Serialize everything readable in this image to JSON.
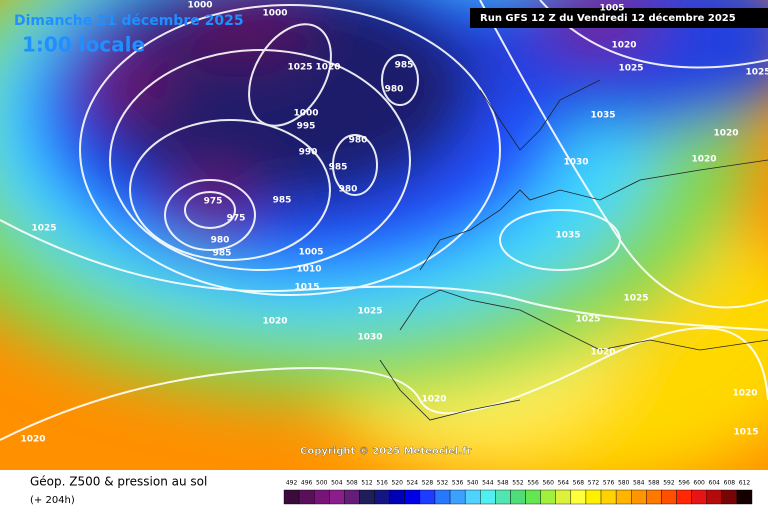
{
  "header": {
    "date": "Dimanche 21 décembre 2025",
    "time": "1:00 locale",
    "run": "Run GFS 12 Z du Vendredi 12 décembre 2025"
  },
  "footer": {
    "title": "Géop. Z500 & pression au sol",
    "lead": "(+ 204h)",
    "copyright": "Copyright © 2025 Meteociel.fr"
  },
  "legend": {
    "values": [
      492,
      496,
      500,
      504,
      508,
      512,
      516,
      520,
      524,
      528,
      532,
      536,
      540,
      544,
      548,
      552,
      556,
      560,
      564,
      568,
      572,
      576,
      580,
      584,
      588,
      592,
      596,
      600,
      604,
      608,
      612
    ],
    "colors": [
      "#3c0a3c",
      "#5a0f5a",
      "#781478",
      "#8c1e8c",
      "#641e78",
      "#1e1e5a",
      "#141482",
      "#0000b4",
      "#0000e6",
      "#1e3cff",
      "#2878ff",
      "#3ca0ff",
      "#50d2ff",
      "#50f0f0",
      "#50e6b4",
      "#50dc78",
      "#64e650",
      "#a0f03c",
      "#dcf03c",
      "#ffff3c",
      "#fff000",
      "#ffd200",
      "#ffb400",
      "#ff9600",
      "#ff7800",
      "#ff5000",
      "#ff2800",
      "#e61414",
      "#b40a0a",
      "#780505",
      "#140000"
    ]
  },
  "isobar_labels": [
    1000,
    1000,
    1025,
    1020,
    1025,
    985,
    980,
    1000,
    995,
    990,
    980,
    985,
    980,
    985,
    975,
    975,
    980,
    985,
    1005,
    1010,
    1015,
    1020,
    1025,
    1030,
    1035,
    1030,
    1035,
    1020,
    1025,
    1005,
    1020,
    1020,
    1025,
    1025,
    1020,
    1020,
    1020,
    1020,
    1015,
    1025
  ]
}
